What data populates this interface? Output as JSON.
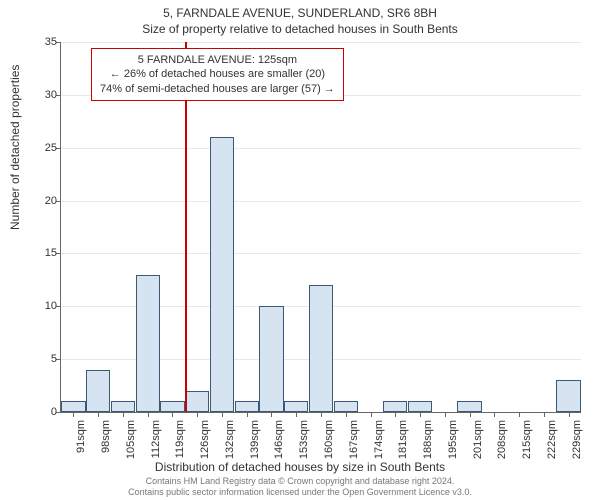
{
  "header": {
    "address_line": "5, FARNDALE AVENUE, SUNDERLAND, SR6 8BH",
    "subtitle": "Size of property relative to detached houses in South Bents"
  },
  "callout": {
    "line1": "5 FARNDALE AVENUE: 125sqm",
    "line2": "← 26% of detached houses are smaller (20)",
    "line3": "74% of semi-detached houses are larger (57) →"
  },
  "chart": {
    "type": "bar",
    "y_label": "Number of detached properties",
    "x_label": "Distribution of detached houses by size in South Bents",
    "ylim": [
      0,
      35
    ],
    "ytick_step": 5,
    "y_ticks": [
      0,
      5,
      10,
      15,
      20,
      25,
      30,
      35
    ],
    "categories": [
      "91sqm",
      "98sqm",
      "105sqm",
      "112sqm",
      "119sqm",
      "126sqm",
      "132sqm",
      "139sqm",
      "146sqm",
      "153sqm",
      "160sqm",
      "167sqm",
      "174sqm",
      "181sqm",
      "188sqm",
      "195sqm",
      "201sqm",
      "208sqm",
      "215sqm",
      "222sqm",
      "229sqm"
    ],
    "values": [
      1,
      4,
      1,
      13,
      1,
      2,
      26,
      1,
      10,
      1,
      12,
      1,
      0,
      1,
      1,
      0,
      1,
      0,
      0,
      0,
      3
    ],
    "bar_fill": "#d6e4f2",
    "bar_border": "#3b5876",
    "grid_color": "#e9e9e9",
    "axis_color": "#666666",
    "background": "#ffffff",
    "reference_line_index": 5,
    "reference_line_color": "#cc0000",
    "bar_width_ratio": 0.98,
    "label_fontsize": 11,
    "axis_label_fontsize": 12
  },
  "footer": {
    "line1": "Contains HM Land Registry data © Crown copyright and database right 2024.",
    "line2": "Contains public sector information licensed under the Open Government Licence v3.0."
  }
}
